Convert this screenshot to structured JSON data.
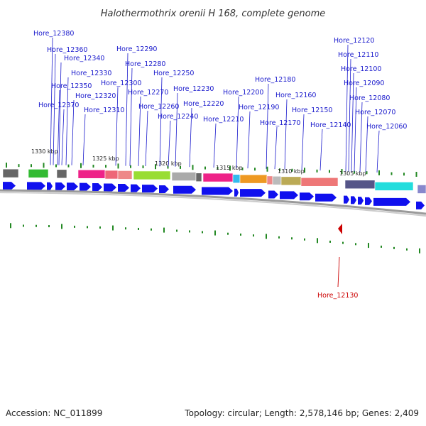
{
  "title": "Halothermothrix orenii H 168, complete genome",
  "footer": {
    "accession": "Accession: NC_011899",
    "topology": "Topology: circular; Length: 2,578,146 bp; Genes: 2,409"
  },
  "colors": {
    "gene_arrow": "#1010ee",
    "label": "#1a1acc",
    "selected": "#cc0000",
    "tick": "#228822",
    "backbone": "#9a9a9a"
  },
  "kbp_marks": [
    "1330 kbp",
    "1325 kbp",
    "1320 kbp",
    "1315 kbp",
    "1310 kbp",
    "1305 kbp"
  ],
  "gene_labels": [
    "Hore_12380",
    "Hore_12360",
    "Hore_12340",
    "Hore_12330",
    "Hore_12350",
    "Hore_12320",
    "Hore_12370",
    "Hore_12310",
    "Hore_12290",
    "Hore_12280",
    "Hore_12300",
    "Hore_12270",
    "Hore_12260",
    "Hore_12250",
    "Hore_12230",
    "Hore_12240",
    "Hore_12220",
    "Hore_12210",
    "Hore_12200",
    "Hore_12190",
    "Hore_12180",
    "Hore_12160",
    "Hore_12170",
    "Hore_12150",
    "Hore_12140",
    "Hore_12120",
    "Hore_12110",
    "Hore_12100",
    "Hore_12090",
    "Hore_12080",
    "Hore_12070",
    "Hore_12060"
  ],
  "selected_gene": "Hore_12130"
}
